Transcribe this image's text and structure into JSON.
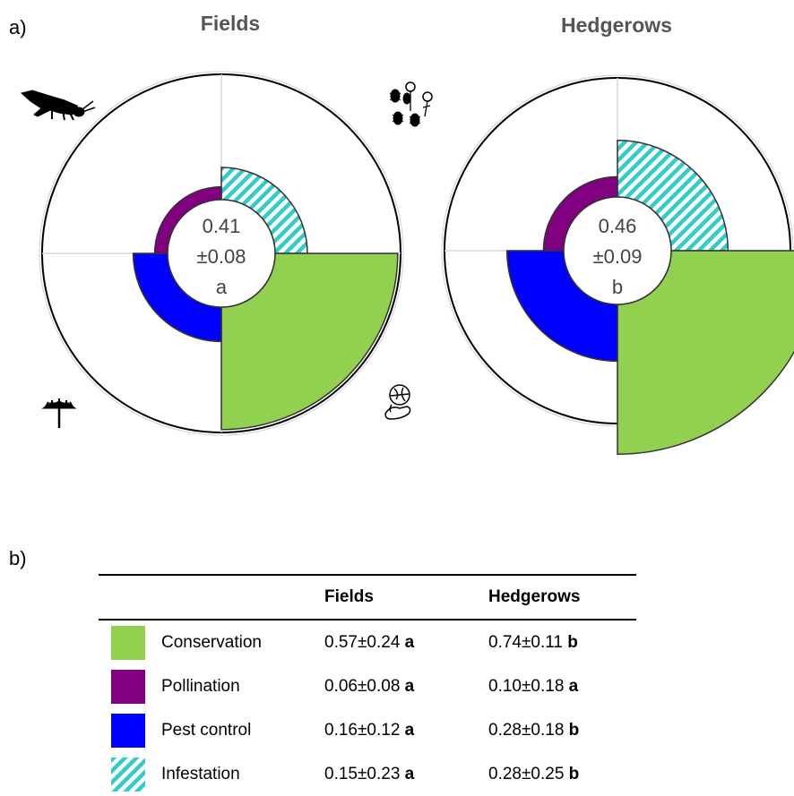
{
  "panel_labels": {
    "a": "a)",
    "b": "b)"
  },
  "colors": {
    "conservation": "#92d050",
    "pollination": "#800080",
    "pest_control": "#0000ff",
    "infestation": "#33cccc"
  },
  "icons": [
    "insect-larva-icon",
    "beetles-and-flowers-icon",
    "flower-icon",
    "hand-holding-globe-icon"
  ],
  "chart_data": [
    {
      "type": "polar-bar",
      "title": "Fields",
      "center": {
        "mean": "0.41",
        "sd": "±0.08",
        "letter": "a"
      },
      "categories": [
        "Infestation",
        "Conservation",
        "Pest control",
        "Pollination"
      ],
      "values": [
        0.15,
        0.57,
        0.16,
        0.06
      ]
    },
    {
      "type": "polar-bar",
      "title": "Hedgerows",
      "center": {
        "mean": "0.46",
        "sd": "±0.09",
        "letter": "b"
      },
      "categories": [
        "Infestation",
        "Conservation",
        "Pest control",
        "Pollination"
      ],
      "values": [
        0.28,
        0.74,
        0.28,
        0.1
      ]
    },
    {
      "type": "table",
      "columns": [
        "",
        "Fields",
        "Hedgerows"
      ],
      "rows": [
        {
          "key": "conservation",
          "label": "Conservation",
          "fields": "0.57±0.24",
          "fields_letter": "a",
          "hedgerows": "0.74±0.11",
          "hedgerows_letter": "b"
        },
        {
          "key": "pollination",
          "label": "Pollination",
          "fields": "0.06±0.08",
          "fields_letter": "a",
          "hedgerows": "0.10±0.18",
          "hedgerows_letter": "a"
        },
        {
          "key": "pest_control",
          "label": "Pest control",
          "fields": "0.16±0.12",
          "fields_letter": "a",
          "hedgerows": "0.28±0.18",
          "hedgerows_letter": "b"
        },
        {
          "key": "infestation",
          "label": "Infestation",
          "fields": "0.15±0.23",
          "fields_letter": "a",
          "hedgerows": "0.28±0.25",
          "hedgerows_letter": "b"
        }
      ]
    }
  ]
}
